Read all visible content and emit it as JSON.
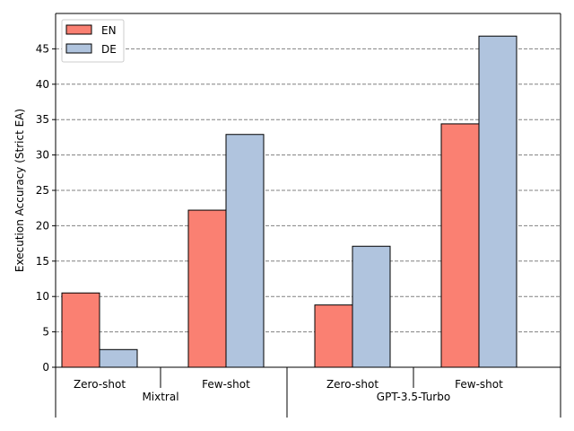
{
  "chart_data": {
    "type": "bar",
    "ylabel": "Execution Accuracy (Strict EA)",
    "ylim": [
      0,
      50
    ],
    "yticks": [
      0,
      5,
      10,
      15,
      20,
      25,
      30,
      35,
      40,
      45
    ],
    "grid": "horizontal dashed",
    "legend_position": "top-left",
    "groups": [
      "Mixtral",
      "GPT-3.5-Turbo"
    ],
    "categories": [
      "Zero-shot",
      "Few-shot",
      "Zero-shot",
      "Few-shot"
    ],
    "category_groups": [
      0,
      0,
      1,
      1
    ],
    "series": [
      {
        "name": "EN",
        "color": "#fa8072",
        "values": [
          10.5,
          22.2,
          8.8,
          34.4
        ]
      },
      {
        "name": "DE",
        "color": "#b0c4de",
        "values": [
          2.5,
          32.9,
          17.1,
          46.8
        ]
      }
    ]
  }
}
